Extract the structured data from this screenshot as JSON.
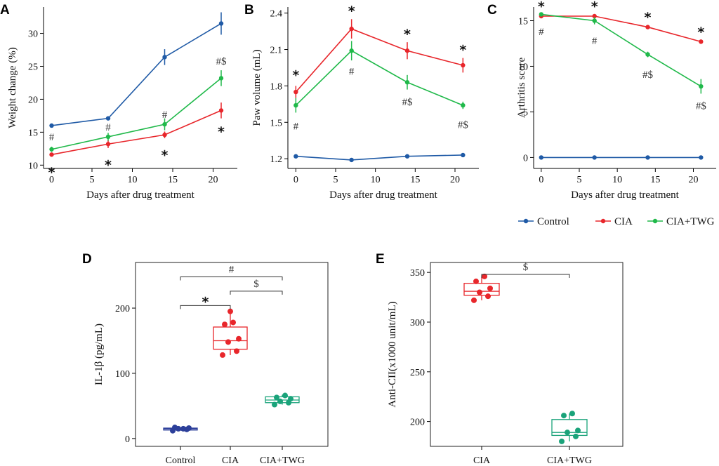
{
  "colors": {
    "control": "#1f5aa6",
    "cia": "#e8262b",
    "twg": "#20b94a",
    "twg_box": "#1aa37a",
    "ctrl_box": "#2c3f9a"
  },
  "legend": [
    "Control",
    "CIA",
    "CIA+TWG"
  ],
  "chart_data": [
    {
      "panel": "A",
      "type": "line",
      "xlabel": "Days after drug treatment",
      "ylabel": "Weight change (%)",
      "x": [
        0,
        7,
        14,
        21
      ],
      "xlim": [
        -1,
        23
      ],
      "ylim": [
        9.5,
        34
      ],
      "xticks": [
        "0",
        "5",
        "10",
        "15",
        "20"
      ],
      "yticks": [
        "10",
        "15",
        "20",
        "25",
        "30"
      ],
      "series": [
        {
          "name": "Control",
          "values": [
            16.0,
            17.1,
            26.4,
            31.5
          ],
          "err": [
            0.3,
            0.3,
            1.2,
            1.7
          ]
        },
        {
          "name": "CIA",
          "values": [
            11.6,
            13.2,
            14.6,
            18.3
          ],
          "err": [
            0.3,
            0.6,
            0.5,
            1.2
          ]
        },
        {
          "name": "CIA+TWG",
          "values": [
            12.4,
            14.3,
            16.2,
            23.2
          ],
          "err": [
            0.4,
            0.6,
            0.9,
            1.2
          ]
        }
      ],
      "annotations": [
        {
          "text": "#",
          "x": 0,
          "y": 14.3,
          "kind": "hash"
        },
        {
          "text": "*",
          "x": 0,
          "y": 9.5,
          "kind": "star"
        },
        {
          "text": "#",
          "x": 7,
          "y": 15.8,
          "kind": "hash"
        },
        {
          "text": "*",
          "x": 7,
          "y": 10.6,
          "kind": "star"
        },
        {
          "text": "#",
          "x": 14,
          "y": 17.7,
          "kind": "hash"
        },
        {
          "text": "*",
          "x": 14,
          "y": 12.1,
          "kind": "star"
        },
        {
          "text": "#$",
          "x": 21,
          "y": 25.8,
          "kind": "hash"
        },
        {
          "text": "*",
          "x": 21,
          "y": 15.7,
          "kind": "star"
        }
      ]
    },
    {
      "panel": "B",
      "type": "line",
      "xlabel": "Days after drug treatment",
      "ylabel": "Paw volume (mL)",
      "x": [
        0,
        7,
        14,
        21
      ],
      "xlim": [
        -1,
        23
      ],
      "ylim": [
        1.12,
        2.45
      ],
      "xticks": [
        "0",
        "5",
        "10",
        "15",
        "20"
      ],
      "yticks": [
        "1.2",
        "1.5",
        "1.8",
        "2.1",
        "2.4"
      ],
      "series": [
        {
          "name": "Control",
          "values": [
            1.22,
            1.19,
            1.22,
            1.23
          ],
          "err": [
            0.005,
            0.005,
            0.005,
            0.005
          ]
        },
        {
          "name": "CIA",
          "values": [
            1.75,
            2.27,
            2.09,
            1.97
          ],
          "err": [
            0.05,
            0.08,
            0.07,
            0.06
          ]
        },
        {
          "name": "CIA+TWG",
          "values": [
            1.64,
            2.09,
            1.83,
            1.64
          ],
          "err": [
            0.06,
            0.08,
            0.06,
            0.03
          ]
        }
      ],
      "annotations": [
        {
          "text": "*",
          "x": 0,
          "y": 1.92,
          "kind": "star"
        },
        {
          "text": "#",
          "x": 0,
          "y": 1.47,
          "kind": "hash"
        },
        {
          "text": "*",
          "x": 7,
          "y": 2.45,
          "kind": "star"
        },
        {
          "text": "#",
          "x": 7,
          "y": 1.92,
          "kind": "hash"
        },
        {
          "text": "*",
          "x": 14,
          "y": 2.26,
          "kind": "star"
        },
        {
          "text": "#$",
          "x": 14,
          "y": 1.67,
          "kind": "hash"
        },
        {
          "text": "*",
          "x": 21,
          "y": 2.13,
          "kind": "star"
        },
        {
          "text": "#$",
          "x": 21,
          "y": 1.48,
          "kind": "hash"
        }
      ]
    },
    {
      "panel": "C",
      "type": "line",
      "xlabel": "Days after drug treatment",
      "ylabel": "Arthritis score",
      "x": [
        0,
        7,
        14,
        21
      ],
      "xlim": [
        -1,
        23
      ],
      "ylim": [
        -1.2,
        16.5
      ],
      "xticks": [
        "0",
        "5",
        "10",
        "15",
        "20"
      ],
      "yticks": [
        "0",
        "5",
        "10",
        "15"
      ],
      "series": [
        {
          "name": "Control",
          "values": [
            0,
            0,
            0,
            0
          ],
          "err": [
            0,
            0,
            0,
            0
          ]
        },
        {
          "name": "CIA",
          "values": [
            15.5,
            15.5,
            14.3,
            12.7
          ],
          "err": [
            0.1,
            0.2,
            0.1,
            0.1
          ]
        },
        {
          "name": "CIA+TWG",
          "values": [
            15.7,
            15.0,
            11.3,
            7.8
          ],
          "err": [
            0.2,
            0.4,
            0.3,
            0.8
          ]
        }
      ],
      "annotations": [
        {
          "text": "*",
          "x": 0,
          "y": 17.0,
          "kind": "star"
        },
        {
          "text": "#",
          "x": 0,
          "y": 13.8,
          "kind": "hash"
        },
        {
          "text": "*",
          "x": 7,
          "y": 17.0,
          "kind": "star"
        },
        {
          "text": "#",
          "x": 7,
          "y": 12.8,
          "kind": "hash"
        },
        {
          "text": "*",
          "x": 14,
          "y": 15.8,
          "kind": "star"
        },
        {
          "text": "#$",
          "x": 14,
          "y": 9.1,
          "kind": "hash"
        },
        {
          "text": "*",
          "x": 21,
          "y": 14.2,
          "kind": "star"
        },
        {
          "text": "#$",
          "x": 21,
          "y": 5.7,
          "kind": "hash"
        }
      ]
    },
    {
      "panel": "D",
      "type": "box",
      "ylabel": "IL-1β (pg/mL)",
      "ylim": [
        -12,
        270
      ],
      "categories": [
        "Control",
        "CIA",
        "CIA+TWG"
      ],
      "yticks": [
        "0",
        "100",
        "200"
      ],
      "boxes": [
        {
          "name": "Control",
          "q1": 13,
          "median": 15,
          "q3": 16,
          "low": 12,
          "high": 17,
          "points": [
            12,
            14,
            15,
            16,
            17,
            15
          ]
        },
        {
          "name": "CIA",
          "q1": 137,
          "median": 150,
          "q3": 171,
          "low": 128,
          "high": 196,
          "points": [
            128,
            134,
            148,
            153,
            175,
            178,
            195
          ]
        },
        {
          "name": "CIA+TWG",
          "q1": 55,
          "median": 59,
          "q3": 64,
          "low": 52,
          "high": 67,
          "points": [
            52,
            55,
            57,
            61,
            63,
            66
          ]
        }
      ],
      "brackets": [
        {
          "from": 0,
          "to": 2,
          "y": 248,
          "label": "#"
        },
        {
          "from": 1,
          "to": 2,
          "y": 226,
          "label": "$"
        },
        {
          "from": 0,
          "to": 1,
          "y": 204,
          "label": "*"
        }
      ]
    },
    {
      "panel": "E",
      "type": "box",
      "ylabel": "Anti-CII(x1000 unit/mL)",
      "ylim": [
        175,
        360
      ],
      "categories": [
        "CIA",
        "CIA+TWG"
      ],
      "yticks": [
        "200",
        "250",
        "300",
        "350"
      ],
      "boxes": [
        {
          "name": "CIA",
          "q1": 327,
          "median": 331,
          "q3": 339,
          "low": 322,
          "high": 346,
          "points": [
            322,
            326,
            330,
            334,
            341,
            346
          ]
        },
        {
          "name": "CIA+TWG",
          "q1": 186,
          "median": 189,
          "q3": 202,
          "low": 180,
          "high": 208,
          "points": [
            180,
            185,
            189,
            191,
            206,
            208
          ]
        }
      ],
      "brackets": [
        {
          "from": 0,
          "to": 1,
          "y": 348,
          "label": "$"
        }
      ]
    }
  ]
}
